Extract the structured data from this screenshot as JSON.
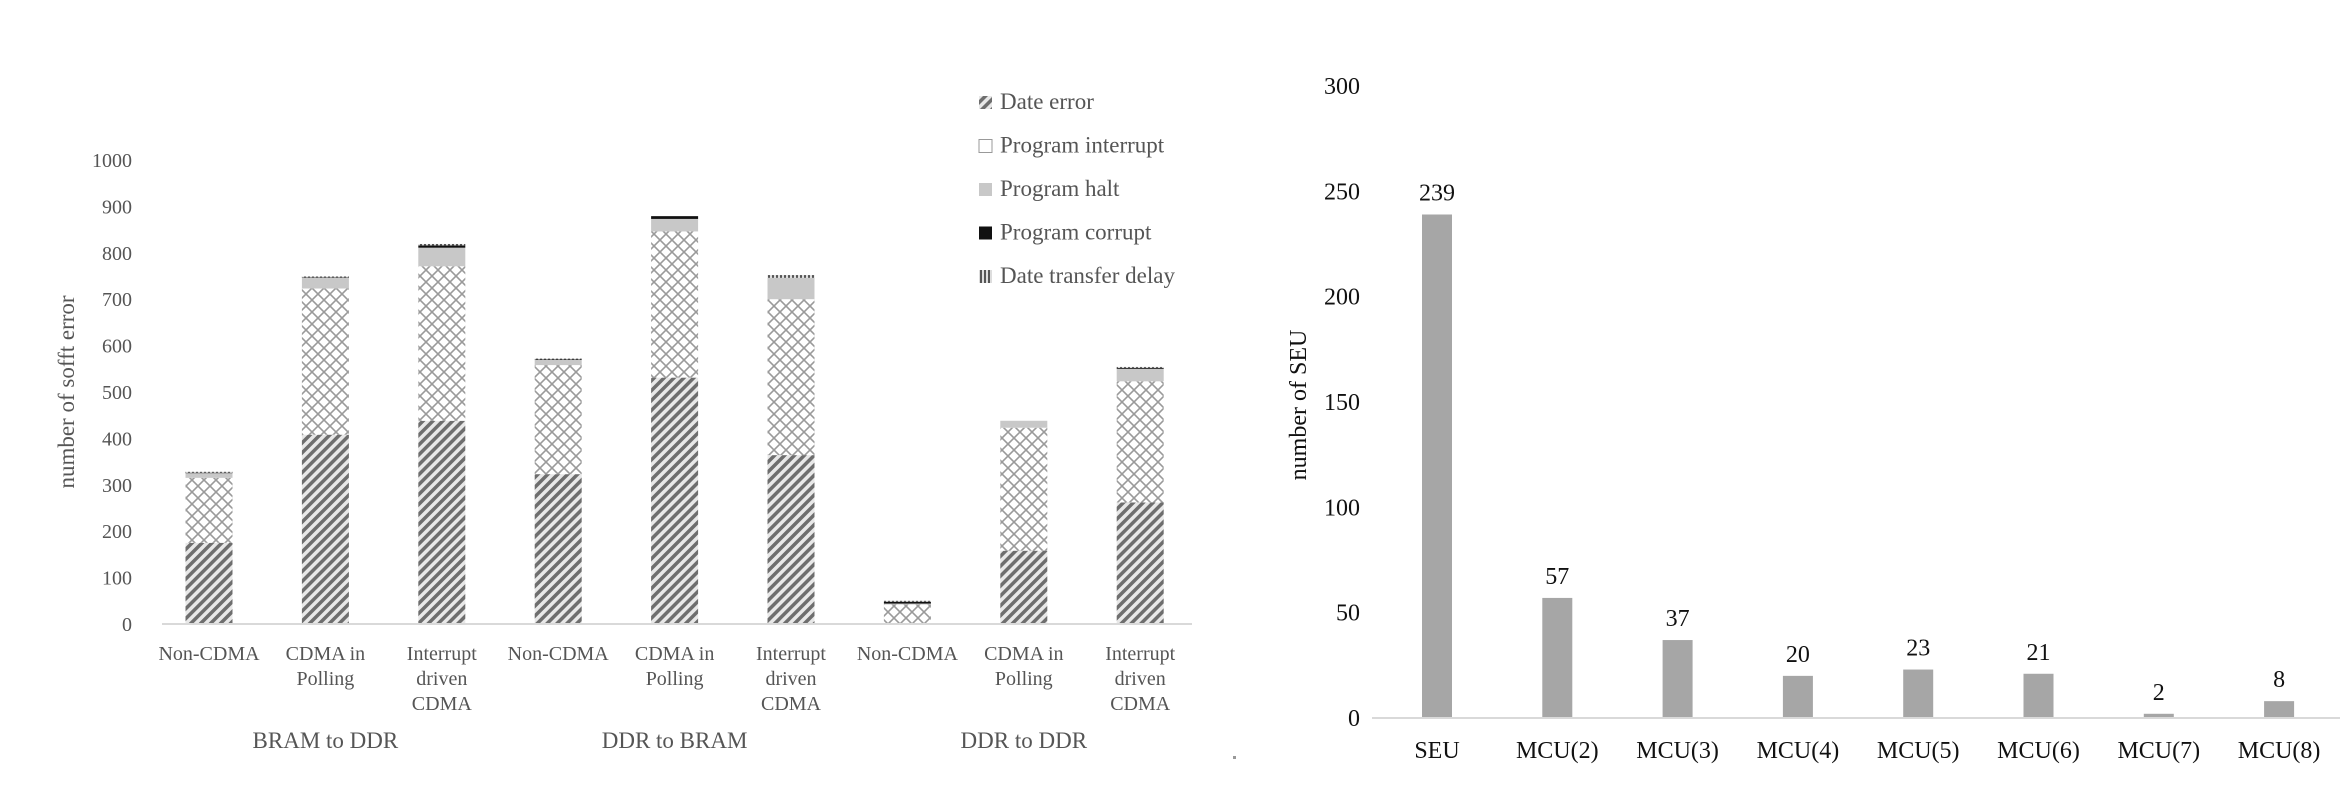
{
  "chart_data": [
    {
      "type": "bar",
      "stacked": true,
      "ylabel": "number of sofft error",
      "ylim": [
        0,
        1000
      ],
      "yticks": [
        "0",
        "100",
        "200",
        "300",
        "400",
        "500",
        "600",
        "700",
        "800",
        "900",
        "1000"
      ],
      "groups": [
        "BRAM to DDR",
        "DDR to BRAM",
        "DDR to DDR"
      ],
      "categories": [
        [
          "Non-CDMA"
        ],
        [
          "CDMA in",
          "Polling"
        ],
        [
          "Interrupt",
          "driven",
          "CDMA"
        ],
        [
          "Non-CDMA"
        ],
        [
          "CDMA in",
          "Polling"
        ],
        [
          "Interrupt",
          "driven",
          "CDMA"
        ],
        [
          "Non-CDMA"
        ],
        [
          "CDMA in",
          "Polling"
        ],
        [
          "Interrupt",
          "driven",
          "CDMA"
        ]
      ],
      "legend_position": "top-right",
      "series": [
        {
          "name": "Date error",
          "pattern": "diagonal",
          "color": "#7f7f7f",
          "values": [
            175,
            408,
            438,
            323,
            531,
            364,
            0,
            158,
            262
          ]
        },
        {
          "name": "Program interrupt",
          "pattern": "crosshatch",
          "color": "#a0a0a0",
          "values": [
            140,
            315,
            333,
            235,
            315,
            336,
            42,
            265,
            261
          ]
        },
        {
          "name": "Program halt",
          "pattern": "solid",
          "color": "#c8c8c8",
          "values": [
            10,
            23,
            40,
            11,
            27,
            46,
            2,
            15,
            27
          ]
        },
        {
          "name": "Program corrupt",
          "pattern": "solid",
          "color": "#111111",
          "values": [
            1,
            1,
            5,
            1,
            6,
            0,
            4,
            0,
            2
          ]
        },
        {
          "name": "Date transfer delay",
          "pattern": "vertical",
          "color": "#666666",
          "values": [
            2,
            2,
            3,
            2,
            0,
            6,
            2,
            0,
            2
          ]
        }
      ]
    },
    {
      "type": "bar",
      "ylabel": "number of SEU",
      "ylim": [
        0,
        300
      ],
      "yticks": [
        "0",
        "50",
        "100",
        "150",
        "200",
        "250",
        "300"
      ],
      "categories": [
        "SEU",
        "MCU(2)",
        "MCU(3)",
        "MCU(4)",
        "MCU(5)",
        "MCU(6)",
        "MCU(7)",
        "MCU(8)"
      ],
      "values": [
        239,
        57,
        37,
        20,
        23,
        21,
        2,
        8
      ],
      "data_labels": [
        "239",
        "57",
        "37",
        "20",
        "23",
        "21",
        "2",
        "8"
      ],
      "color": "#a6a6a6"
    }
  ]
}
